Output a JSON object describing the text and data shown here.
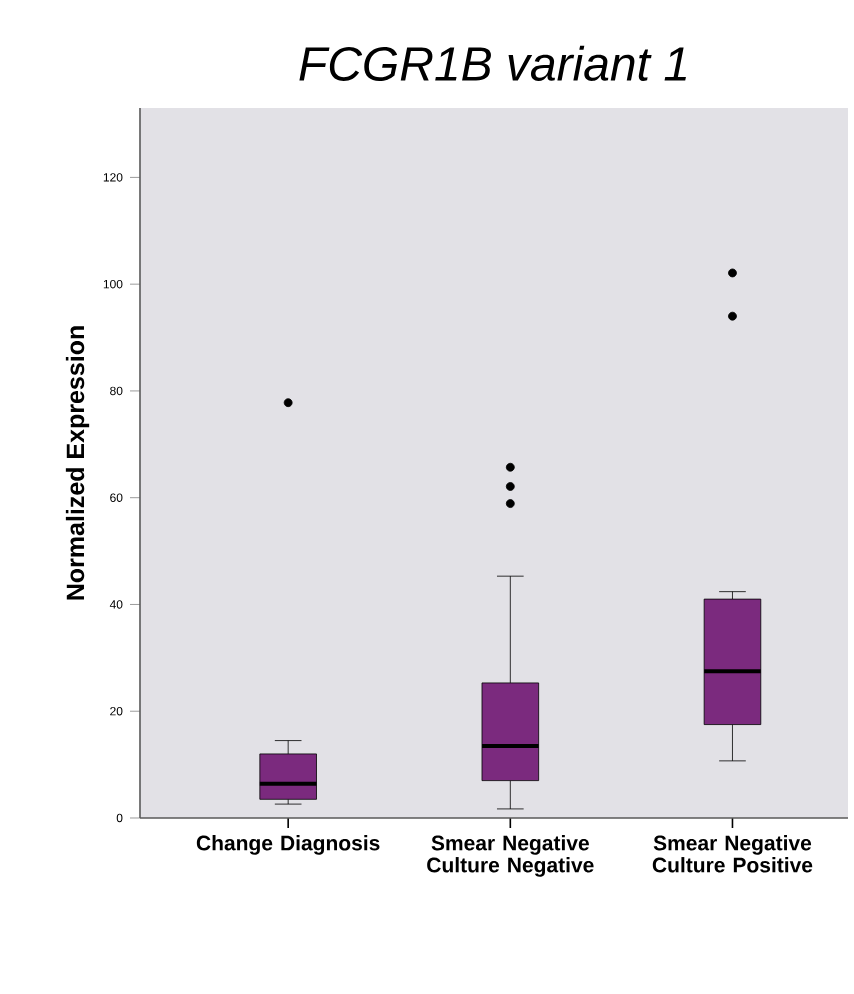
{
  "chart_data": {
    "type": "box",
    "title": "FCGR1B variant 1",
    "ylabel": "Normalized Expression",
    "categories": [
      "Change Diagnosis",
      "Smear Negative Culture Negative",
      "Smear Negative Culture Positive"
    ],
    "color": "#7b2a7e",
    "boxes": [
      {
        "low": 2.6,
        "q1": 3.5,
        "median": 6.4,
        "q3": 12.0,
        "high": 14.5,
        "outliers": [
          77.8
        ]
      },
      {
        "low": 1.7,
        "q1": 7.0,
        "median": 13.5,
        "q3": 25.3,
        "high": 45.3,
        "outliers": [
          58.9,
          62.1,
          65.7
        ]
      },
      {
        "low": 10.7,
        "q1": 17.5,
        "median": 27.5,
        "q3": 41.0,
        "high": 42.4,
        "outliers": [
          94.0,
          102.1
        ]
      }
    ],
    "ylim": [
      0,
      133
    ],
    "yticks": [
      0,
      20,
      40,
      60,
      80,
      100,
      120
    ],
    "grid": false
  }
}
